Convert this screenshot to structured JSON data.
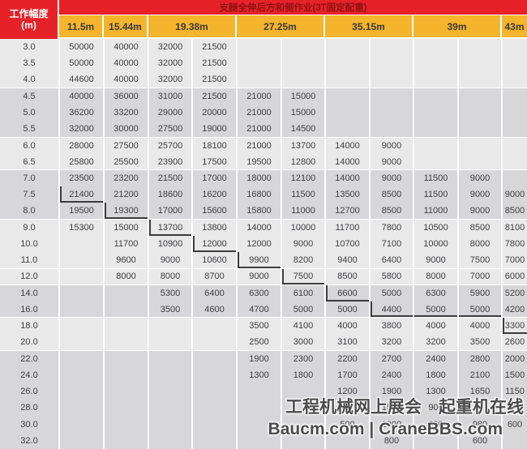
{
  "colors": {
    "red": "#e62228",
    "red_text": "#8f1212",
    "yellow": "#f4b42c",
    "band_light": "#e9e9ea",
    "band_dark": "#d7d7d9",
    "cell_text": "#3e3e40",
    "boundary_line": "#3c3c3c",
    "watermark": "#4c4c4c"
  },
  "watermark": {
    "line1": "工程机械网上展会　起重机在线",
    "line2": "Baucm.com | CraneBBS.com"
  },
  "chart_data": {
    "type": "table",
    "title": "支腿全伸后方和侧作业(3T固定配重)",
    "row_header": {
      "label": "工作幅度",
      "unit": "(m)"
    },
    "column_groups": [
      {
        "label": "11.5m",
        "span": 1
      },
      {
        "label": "15.44m",
        "span": 1
      },
      {
        "label": "19.38m",
        "span": 2
      },
      {
        "label": "27.25m",
        "span": 2
      },
      {
        "label": "35.15m",
        "span": 2
      },
      {
        "label": "39m",
        "span": 2
      },
      {
        "label": "43m",
        "span": 1
      }
    ],
    "radii": [
      "3.0",
      "3.5",
      "4.0",
      "4.5",
      "5.0",
      "5.5",
      "6.0",
      "6.5",
      "7.0",
      "7.5",
      "8.0",
      "9.0",
      "10.0",
      "11.0",
      "12.0",
      "14.0",
      "16.0",
      "18.0",
      "20.0",
      "22.0",
      "24.0",
      "26.0",
      "28.0",
      "30.0",
      "32.0"
    ],
    "values": [
      [
        "50000",
        "40000",
        "32000",
        "21500",
        "",
        "",
        "",
        "",
        "",
        "",
        ""
      ],
      [
        "50000",
        "40000",
        "32000",
        "21500",
        "",
        "",
        "",
        "",
        "",
        "",
        ""
      ],
      [
        "44600",
        "40000",
        "32000",
        "21500",
        "",
        "",
        "",
        "",
        "",
        "",
        ""
      ],
      [
        "40000",
        "36000",
        "31000",
        "21500",
        "21000",
        "15000",
        "",
        "",
        "",
        "",
        ""
      ],
      [
        "36200",
        "33200",
        "29000",
        "20000",
        "21000",
        "15000",
        "",
        "",
        "",
        "",
        ""
      ],
      [
        "32000",
        "30000",
        "27500",
        "19000",
        "21000",
        "14500",
        "",
        "",
        "",
        "",
        ""
      ],
      [
        "28000",
        "27500",
        "25700",
        "18100",
        "21000",
        "13700",
        "14000",
        "9000",
        "",
        "",
        ""
      ],
      [
        "25800",
        "25500",
        "23900",
        "17500",
        "19500",
        "12800",
        "14000",
        "9000",
        "",
        "",
        ""
      ],
      [
        "23500",
        "23200",
        "21500",
        "17000",
        "18000",
        "12100",
        "14000",
        "9000",
        "11500",
        "9000",
        ""
      ],
      [
        "21400",
        "21200",
        "18600",
        "16200",
        "16800",
        "11500",
        "13500",
        "8500",
        "11500",
        "9000",
        "9000"
      ],
      [
        "19500",
        "19300",
        "17000",
        "15600",
        "15800",
        "11000",
        "12700",
        "8500",
        "11000",
        "9000",
        "8500"
      ],
      [
        "15300",
        "15000",
        "13700",
        "13800",
        "14000",
        "10000",
        "11700",
        "7800",
        "10500",
        "8500",
        "8100"
      ],
      [
        "",
        "11700",
        "10900",
        "12000",
        "12000",
        "9000",
        "10700",
        "7100",
        "10000",
        "8000",
        "7800"
      ],
      [
        "",
        "9600",
        "9000",
        "10600",
        "9900",
        "8200",
        "9400",
        "6400",
        "9000",
        "7500",
        "7000"
      ],
      [
        "",
        "8000",
        "8000",
        "8700",
        "9000",
        "7500",
        "8500",
        "5800",
        "8000",
        "7000",
        "6000"
      ],
      [
        "",
        "",
        "5300",
        "6400",
        "6300",
        "6100",
        "6600",
        "5000",
        "6300",
        "5900",
        "5200"
      ],
      [
        "",
        "",
        "3500",
        "4600",
        "4700",
        "5000",
        "5000",
        "4400",
        "5000",
        "5000",
        "4200"
      ],
      [
        "",
        "",
        "",
        "",
        "3500",
        "4100",
        "4000",
        "3800",
        "4000",
        "4000",
        "3300"
      ],
      [
        "",
        "",
        "",
        "",
        "2500",
        "3000",
        "3100",
        "3200",
        "3200",
        "3500",
        "2600"
      ],
      [
        "",
        "",
        "",
        "",
        "1900",
        "2300",
        "2200",
        "2700",
        "2400",
        "2800",
        "2000"
      ],
      [
        "",
        "",
        "",
        "",
        "1300",
        "1800",
        "1700",
        "2400",
        "1800",
        "2100",
        "1500"
      ],
      [
        "",
        "",
        "",
        "",
        "",
        "",
        "1200",
        "1900",
        "1300",
        "1650",
        "1150"
      ],
      [
        "",
        "",
        "",
        "",
        "",
        "",
        "",
        "1500",
        "900",
        "",
        ""
      ],
      [
        "",
        "",
        "",
        "",
        "",
        "",
        "500",
        "1000",
        "600",
        "980",
        "600"
      ],
      [
        "",
        "",
        "",
        "",
        "",
        "",
        "",
        "800",
        "",
        "600",
        ""
      ]
    ],
    "boundary_line": [
      {
        "row": 9,
        "col": 0,
        "edges": "left-bottom"
      },
      {
        "row": 10,
        "col": 1,
        "edges": "left-bottom"
      },
      {
        "row": 11,
        "col": 2,
        "edges": "left-bottom"
      },
      {
        "row": 12,
        "col": 3,
        "edges": "left-bottom"
      },
      {
        "row": 13,
        "col": 4,
        "edges": "left-bottom"
      },
      {
        "row": 14,
        "col": 5,
        "edges": "left-bottom"
      },
      {
        "row": 15,
        "col": 6,
        "edges": "left-bottom"
      },
      {
        "row": 16,
        "col": 7,
        "edges": "left-bottom"
      },
      {
        "row": 16,
        "col": 8,
        "edges": "bottom"
      },
      {
        "row": 16,
        "col": 9,
        "edges": "bottom"
      },
      {
        "row": 17,
        "col": 10,
        "edges": "left-bottom"
      }
    ]
  }
}
